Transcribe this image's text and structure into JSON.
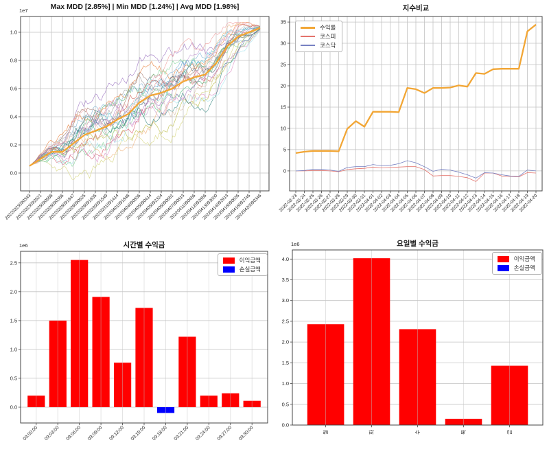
{
  "figure": {
    "background": "#ffffff"
  },
  "chart_data": [
    {
      "id": "mdd-equity",
      "type": "line",
      "title": "Max MDD [2.85%] | Min MDD [1.24%] | Avg MDD [1.98%]",
      "scale_label": "1e7",
      "grid": true,
      "x": [
        "20220323090343",
        "20220323092621",
        "20220325090658",
        "20220328090356",
        "20220328091947",
        "20220329090625",
        "20220329091935",
        "20220330091549",
        "20220331091414",
        "20220401091848",
        "20220404090836",
        "20220405090414",
        "20220405092324",
        "20220406090651",
        "20220407090813",
        "20220411090456",
        "20220412092856",
        "20220413093000",
        "20220414092913",
        "20220418090635",
        "20220418092745",
        "20220420090346"
      ],
      "y_ticks": [
        0.0,
        0.2,
        0.4,
        0.6,
        0.8,
        1.0
      ],
      "ylim": [
        -0.127,
        1.112
      ],
      "series": [
        {
          "name": "average-equity-curve",
          "color": "#f2a635",
          "width": 2.3,
          "values": [
            0.05,
            0.1,
            0.15,
            0.15,
            0.21,
            0.27,
            0.3,
            0.33,
            0.38,
            0.42,
            0.5,
            0.55,
            0.57,
            0.6,
            0.65,
            0.68,
            0.7,
            0.78,
            0.9,
            0.97,
            1.0,
            1.03
          ]
        }
      ],
      "background_series": {
        "count": 25,
        "note": "thin individual simulation equity curves rising from ~0 to ~1.0e7",
        "colors": [
          "#4e9bc8",
          "#e8803a",
          "#53b06b",
          "#d8566a",
          "#9b72c0",
          "#a3766a",
          "#df8fc6",
          "#9a9a9a",
          "#b9b93f",
          "#45bcd0",
          "#7fb3d5",
          "#f0b27a",
          "#82d49a",
          "#ef9a9a",
          "#c39bd3",
          "#d7bda5",
          "#f5b7d0",
          "#c0c0c0",
          "#d4d47a",
          "#a3e4ed",
          "#5d6d7e",
          "#cd6155",
          "#52be80",
          "#af7ac5",
          "#348781"
        ]
      }
    },
    {
      "id": "index-compare",
      "type": "line",
      "title": "지수비교",
      "grid": true,
      "legend_position": "upper-left",
      "x": [
        "2022-03-23",
        "2022-03-24",
        "2022-03-25",
        "2022-03-26",
        "2022-03-27",
        "2022-03-28",
        "2022-03-29",
        "2022-03-30",
        "2022-03-31",
        "2022-04-01",
        "2022-04-02",
        "2022-04-03",
        "2022-04-04",
        "2022-04-05",
        "2022-04-06",
        "2022-04-07",
        "2022-04-08",
        "2022-04-09",
        "2022-04-10",
        "2022-04-11",
        "2022-04-12",
        "2022-04-13",
        "2022-04-14",
        "2022-04-15",
        "2022-04-16",
        "2022-04-17",
        "2022-04-18",
        "2022-04-19",
        "2022-04-20"
      ],
      "y_ticks": [
        0,
        5,
        10,
        15,
        20,
        25,
        30,
        35
      ],
      "ylim": [
        -4.7,
        36.3
      ],
      "series": [
        {
          "name": "수익률",
          "color": "#f2a635",
          "width": 2.3,
          "values": [
            4.2,
            4.5,
            4.7,
            4.7,
            4.7,
            4.6,
            9.9,
            11.7,
            10.4,
            13.9,
            13.9,
            13.9,
            13.8,
            19.5,
            19.2,
            18.3,
            19.5,
            19.5,
            19.6,
            20.1,
            19.8,
            23.0,
            22.8,
            23.9,
            24.0,
            24.0,
            24.0,
            32.8,
            34.4
          ]
        },
        {
          "name": "코스피",
          "color": "#e4736c",
          "width": 0.8,
          "values": [
            0.0,
            0.0,
            0.1,
            0.1,
            0.0,
            -0.2,
            0.3,
            0.5,
            0.6,
            0.9,
            0.7,
            0.8,
            0.9,
            1.0,
            1.0,
            0.3,
            -1.2,
            -1.1,
            -1.1,
            -1.3,
            -1.6,
            -2.5,
            -0.5,
            -0.5,
            -1.2,
            -1.3,
            -1.4,
            -0.4,
            -0.5
          ]
        },
        {
          "name": "코스닥",
          "color": "#7680c2",
          "width": 0.8,
          "values": [
            0.0,
            0.1,
            0.4,
            0.4,
            0.2,
            -0.1,
            0.8,
            1.0,
            1.0,
            1.5,
            1.2,
            1.3,
            1.7,
            2.4,
            1.9,
            1.0,
            -0.1,
            0.4,
            0.2,
            -0.3,
            -0.9,
            -1.7,
            -0.4,
            -0.5,
            -0.9,
            -1.2,
            -1.3,
            0.2,
            0.0
          ]
        }
      ]
    },
    {
      "id": "hourly-profit",
      "type": "bar",
      "title": "시간별 수익금",
      "scale_label": "1e6",
      "grid": true,
      "legend_position": "upper-right",
      "categories": [
        "09:00:00",
        "09:03:00",
        "09:06:00",
        "09:09:00",
        "09:12:00",
        "09:15:00",
        "09:18:00",
        "09:21:00",
        "09:24:00",
        "09:27:00",
        "09:30:00"
      ],
      "values": [
        0.2,
        1.5,
        2.55,
        1.91,
        0.77,
        1.72,
        -0.1,
        1.22,
        0.2,
        0.24,
        0.11
      ],
      "y_ticks": [
        0.0,
        0.5,
        1.0,
        1.5,
        2.0,
        2.5
      ],
      "ylim": [
        -0.274,
        2.7
      ],
      "profit_color": "#ff0000",
      "loss_color": "#0000ff",
      "legend": [
        "이익금액",
        "손실금액"
      ]
    },
    {
      "id": "weekday-profit",
      "type": "bar",
      "title": "요일별 수익금",
      "scale_label": "1e6",
      "grid": true,
      "legend_position": "upper-right",
      "categories": [
        "월",
        "화",
        "수",
        "목",
        "금"
      ],
      "values": [
        2.43,
        4.02,
        2.31,
        0.15,
        1.43
      ],
      "y_ticks": [
        0.0,
        0.5,
        1.0,
        1.5,
        2.0,
        2.5,
        3.0,
        3.5,
        4.0
      ],
      "ylim": [
        0,
        4.22
      ],
      "profit_color": "#ff0000",
      "loss_color": "#0000ff",
      "legend": [
        "이익금액",
        "손실금액"
      ]
    }
  ]
}
